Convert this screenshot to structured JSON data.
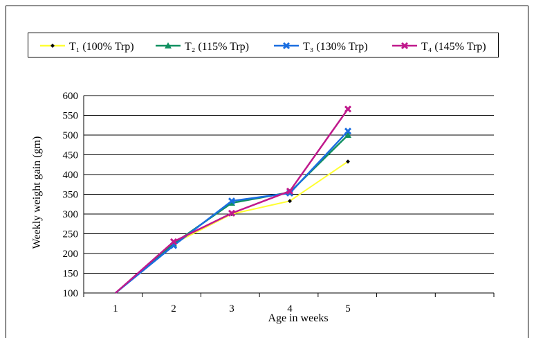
{
  "chart_data": {
    "type": "line",
    "title": "",
    "xlabel": "Age in weeks",
    "ylabel": "Weekly  weight gain (gm)",
    "categories": [
      "1",
      "2",
      "3",
      "4",
      "5"
    ],
    "ylim": [
      100,
      600
    ],
    "y_ticks": [
      "100",
      "150",
      "200",
      "250",
      "300",
      "350",
      "400",
      "450",
      "500",
      "550",
      "600"
    ],
    "grid": true,
    "legend_position": "top",
    "series": [
      {
        "name": "T₁ (100% Trp)",
        "color": "#ffff33",
        "marker": "diamond",
        "values": [
          100,
          225,
          300,
          333,
          433
        ]
      },
      {
        "name": "T₂ (115% Trp)",
        "color": "#109060",
        "marker": "triangle",
        "values": [
          100,
          225,
          328,
          355,
          500
        ]
      },
      {
        "name": "T₃ (130% Trp)",
        "color": "#1a6ee0",
        "marker": "x",
        "values": [
          100,
          220,
          333,
          353,
          510
        ]
      },
      {
        "name": "T₄ (145% Trp)",
        "color": "#c0198c",
        "marker": "x",
        "values": [
          100,
          230,
          302,
          358,
          566
        ]
      }
    ]
  }
}
